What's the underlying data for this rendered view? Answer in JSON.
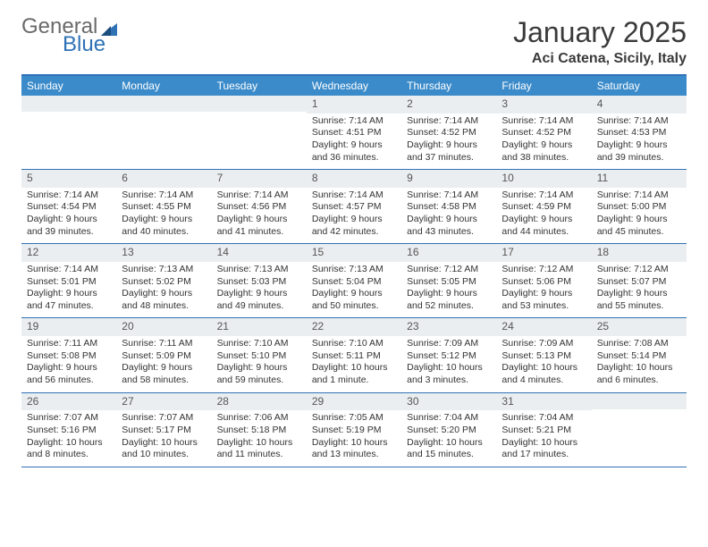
{
  "brand": {
    "part1": "General",
    "part2": "Blue"
  },
  "header": {
    "month_title": "January 2025",
    "location": "Aci Catena, Sicily, Italy"
  },
  "colors": {
    "accent": "#3b8bca",
    "accent_dark": "#2f72b6",
    "header_text": "#ffffff",
    "daynum_bg": "#ebeef0",
    "text": "#333333"
  },
  "days_of_week": [
    "Sunday",
    "Monday",
    "Tuesday",
    "Wednesday",
    "Thursday",
    "Friday",
    "Saturday"
  ],
  "weeks": [
    [
      {
        "day": "",
        "lines": []
      },
      {
        "day": "",
        "lines": []
      },
      {
        "day": "",
        "lines": []
      },
      {
        "day": "1",
        "lines": [
          "Sunrise: 7:14 AM",
          "Sunset: 4:51 PM",
          "Daylight: 9 hours and 36 minutes."
        ]
      },
      {
        "day": "2",
        "lines": [
          "Sunrise: 7:14 AM",
          "Sunset: 4:52 PM",
          "Daylight: 9 hours and 37 minutes."
        ]
      },
      {
        "day": "3",
        "lines": [
          "Sunrise: 7:14 AM",
          "Sunset: 4:52 PM",
          "Daylight: 9 hours and 38 minutes."
        ]
      },
      {
        "day": "4",
        "lines": [
          "Sunrise: 7:14 AM",
          "Sunset: 4:53 PM",
          "Daylight: 9 hours and 39 minutes."
        ]
      }
    ],
    [
      {
        "day": "5",
        "lines": [
          "Sunrise: 7:14 AM",
          "Sunset: 4:54 PM",
          "Daylight: 9 hours and 39 minutes."
        ]
      },
      {
        "day": "6",
        "lines": [
          "Sunrise: 7:14 AM",
          "Sunset: 4:55 PM",
          "Daylight: 9 hours and 40 minutes."
        ]
      },
      {
        "day": "7",
        "lines": [
          "Sunrise: 7:14 AM",
          "Sunset: 4:56 PM",
          "Daylight: 9 hours and 41 minutes."
        ]
      },
      {
        "day": "8",
        "lines": [
          "Sunrise: 7:14 AM",
          "Sunset: 4:57 PM",
          "Daylight: 9 hours and 42 minutes."
        ]
      },
      {
        "day": "9",
        "lines": [
          "Sunrise: 7:14 AM",
          "Sunset: 4:58 PM",
          "Daylight: 9 hours and 43 minutes."
        ]
      },
      {
        "day": "10",
        "lines": [
          "Sunrise: 7:14 AM",
          "Sunset: 4:59 PM",
          "Daylight: 9 hours and 44 minutes."
        ]
      },
      {
        "day": "11",
        "lines": [
          "Sunrise: 7:14 AM",
          "Sunset: 5:00 PM",
          "Daylight: 9 hours and 45 minutes."
        ]
      }
    ],
    [
      {
        "day": "12",
        "lines": [
          "Sunrise: 7:14 AM",
          "Sunset: 5:01 PM",
          "Daylight: 9 hours and 47 minutes."
        ]
      },
      {
        "day": "13",
        "lines": [
          "Sunrise: 7:13 AM",
          "Sunset: 5:02 PM",
          "Daylight: 9 hours and 48 minutes."
        ]
      },
      {
        "day": "14",
        "lines": [
          "Sunrise: 7:13 AM",
          "Sunset: 5:03 PM",
          "Daylight: 9 hours and 49 minutes."
        ]
      },
      {
        "day": "15",
        "lines": [
          "Sunrise: 7:13 AM",
          "Sunset: 5:04 PM",
          "Daylight: 9 hours and 50 minutes."
        ]
      },
      {
        "day": "16",
        "lines": [
          "Sunrise: 7:12 AM",
          "Sunset: 5:05 PM",
          "Daylight: 9 hours and 52 minutes."
        ]
      },
      {
        "day": "17",
        "lines": [
          "Sunrise: 7:12 AM",
          "Sunset: 5:06 PM",
          "Daylight: 9 hours and 53 minutes."
        ]
      },
      {
        "day": "18",
        "lines": [
          "Sunrise: 7:12 AM",
          "Sunset: 5:07 PM",
          "Daylight: 9 hours and 55 minutes."
        ]
      }
    ],
    [
      {
        "day": "19",
        "lines": [
          "Sunrise: 7:11 AM",
          "Sunset: 5:08 PM",
          "Daylight: 9 hours and 56 minutes."
        ]
      },
      {
        "day": "20",
        "lines": [
          "Sunrise: 7:11 AM",
          "Sunset: 5:09 PM",
          "Daylight: 9 hours and 58 minutes."
        ]
      },
      {
        "day": "21",
        "lines": [
          "Sunrise: 7:10 AM",
          "Sunset: 5:10 PM",
          "Daylight: 9 hours and 59 minutes."
        ]
      },
      {
        "day": "22",
        "lines": [
          "Sunrise: 7:10 AM",
          "Sunset: 5:11 PM",
          "Daylight: 10 hours and 1 minute."
        ]
      },
      {
        "day": "23",
        "lines": [
          "Sunrise: 7:09 AM",
          "Sunset: 5:12 PM",
          "Daylight: 10 hours and 3 minutes."
        ]
      },
      {
        "day": "24",
        "lines": [
          "Sunrise: 7:09 AM",
          "Sunset: 5:13 PM",
          "Daylight: 10 hours and 4 minutes."
        ]
      },
      {
        "day": "25",
        "lines": [
          "Sunrise: 7:08 AM",
          "Sunset: 5:14 PM",
          "Daylight: 10 hours and 6 minutes."
        ]
      }
    ],
    [
      {
        "day": "26",
        "lines": [
          "Sunrise: 7:07 AM",
          "Sunset: 5:16 PM",
          "Daylight: 10 hours and 8 minutes."
        ]
      },
      {
        "day": "27",
        "lines": [
          "Sunrise: 7:07 AM",
          "Sunset: 5:17 PM",
          "Daylight: 10 hours and 10 minutes."
        ]
      },
      {
        "day": "28",
        "lines": [
          "Sunrise: 7:06 AM",
          "Sunset: 5:18 PM",
          "Daylight: 10 hours and 11 minutes."
        ]
      },
      {
        "day": "29",
        "lines": [
          "Sunrise: 7:05 AM",
          "Sunset: 5:19 PM",
          "Daylight: 10 hours and 13 minutes."
        ]
      },
      {
        "day": "30",
        "lines": [
          "Sunrise: 7:04 AM",
          "Sunset: 5:20 PM",
          "Daylight: 10 hours and 15 minutes."
        ]
      },
      {
        "day": "31",
        "lines": [
          "Sunrise: 7:04 AM",
          "Sunset: 5:21 PM",
          "Daylight: 10 hours and 17 minutes."
        ]
      },
      {
        "day": "",
        "lines": []
      }
    ]
  ]
}
